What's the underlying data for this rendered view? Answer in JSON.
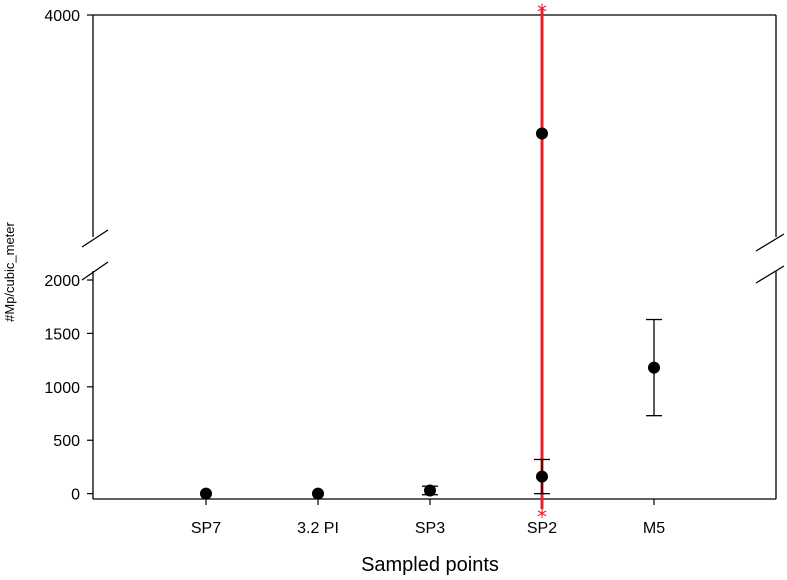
{
  "chart_data": {
    "type": "scatter",
    "title": "",
    "xlabel": "Sampled points",
    "ylabel": "#Mp/cubic_meter",
    "categories": [
      "SP7",
      "3.2 PI",
      "SP3",
      "SP2",
      "M5"
    ],
    "y_axis_broken": true,
    "y_ticks_lower": [
      0,
      500,
      1000,
      1500,
      2000
    ],
    "y_ticks_upper": [
      4000
    ],
    "ylim_lower": [
      -50,
      2000
    ],
    "ylim_upper": [
      2000,
      4000
    ],
    "grid": false,
    "legend": "none",
    "series": [
      {
        "points": [
          {
            "x": "SP7",
            "y": 0,
            "err_low": null,
            "err_high": null
          },
          {
            "x": "3.2 PI",
            "y": 0,
            "err_low": null,
            "err_high": null
          },
          {
            "x": "SP3",
            "y": 30,
            "err_low": -10,
            "err_high": 70
          },
          {
            "x": "SP2",
            "y": 160,
            "err_low": 0,
            "err_high": 320
          },
          {
            "x": "SP2",
            "y": 3000,
            "err_low": null,
            "err_high": null
          },
          {
            "x": "M5",
            "y": 1180,
            "err_low": 730,
            "err_high": 1630
          }
        ]
      }
    ],
    "annotations": [
      {
        "type": "vertical-line",
        "x": "SP2",
        "color": "#e8202a",
        "marker": "*"
      }
    ]
  }
}
